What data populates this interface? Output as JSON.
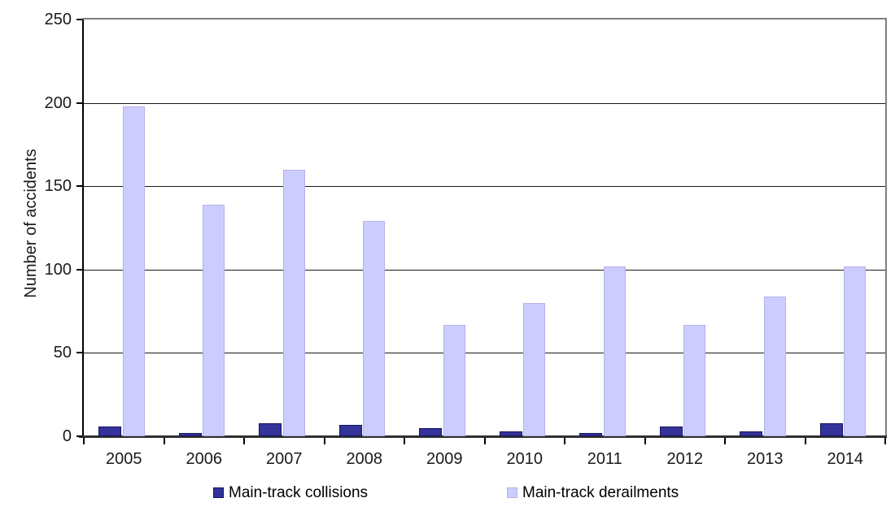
{
  "chart_data": {
    "type": "bar",
    "title": "",
    "xlabel": "",
    "ylabel": "Number of accidents",
    "categories": [
      "2005",
      "2006",
      "2007",
      "2008",
      "2009",
      "2010",
      "2011",
      "2012",
      "2013",
      "2014"
    ],
    "series": [
      {
        "name": "Main-track collisions",
        "color": "#333399",
        "border_color": "#13135c",
        "values": [
          6,
          2,
          8,
          7,
          5,
          3,
          2,
          6,
          3,
          8
        ]
      },
      {
        "name": "Main-track derailments",
        "color": "#ccccff",
        "border_color": "#b3b3e6",
        "values": [
          198,
          139,
          160,
          129,
          67,
          80,
          102,
          67,
          84,
          102
        ]
      }
    ],
    "ylim": [
      0,
      250
    ],
    "yticks": [
      0,
      50,
      100,
      150,
      200,
      250
    ],
    "grid": true,
    "legend_position": "bottom",
    "gridline_color": "#1a1a1a",
    "frame_color": "#7f7f7f",
    "axis_color": "#000000"
  }
}
